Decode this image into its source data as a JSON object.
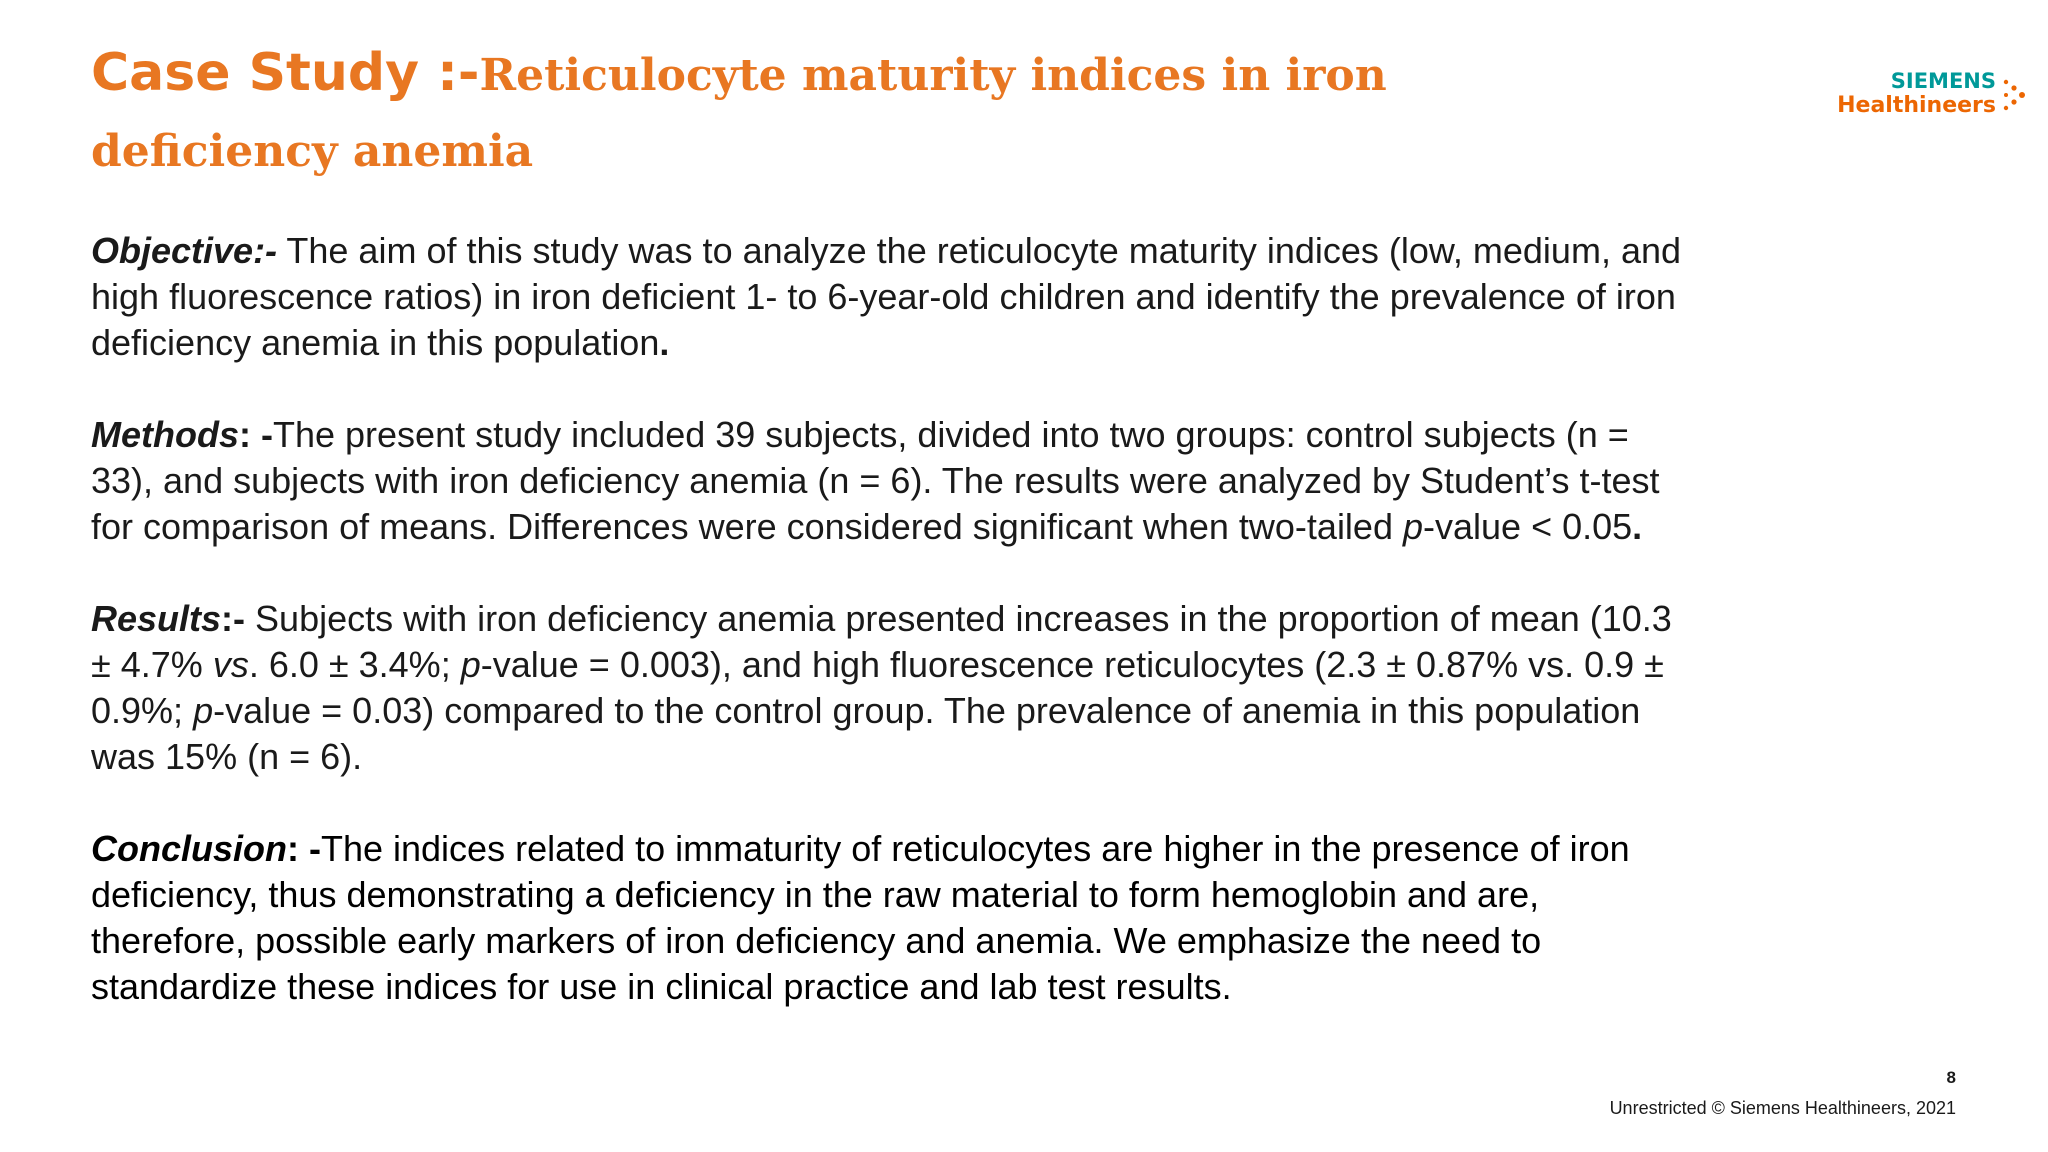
{
  "header": {
    "title_prefix": "Case Study :-",
    "title": "Reticulocyte maturity indices in iron deficiency anemia"
  },
  "logo": {
    "line1": "SIEMENS",
    "line2": "Healthineers"
  },
  "sections": [
    {
      "label": "Objective:-",
      "parts": [
        " The aim of this study was to analyze the reticulocyte maturity indices (low, medium, and high fluorescence ratios) in iron deficient 1- to 6-year-old children and identify the prevalence of iron deficiency anemia in this population",
        "."
      ]
    },
    {
      "label": "Methods",
      "sep": ": -",
      "parts": [
        "The present study included 39 subjects, divided into two groups: control subjects (n = 33), and subjects with iron deficiency anemia (n = 6). The results were analyzed by Student’s t-test for comparison of means. Differences were considered significant when two-tailed ",
        "p",
        "-value < 0.05",
        "."
      ]
    },
    {
      "label": "Results",
      "sep": ":-",
      "parts": [
        " Subjects with iron deficiency anemia presented increases in the proportion of mean (10.3 ± 4.7% ",
        "vs",
        ". 6.0 ± 3.4%; ",
        "p",
        "-value = 0.003), and high fluorescence reticulocytes (2.3 ± 0.87% vs. 0.9 ± 0.9%; ",
        "p",
        "-value = 0.03) compared to the control group. The prevalence of anemia in this population was 15% (n = 6)."
      ]
    },
    {
      "label": "Conclusion",
      "sep": ": -",
      "parts": [
        "The indices related to immaturity of reticulocytes are higher in the presence of iron deficiency, thus demonstrating a deficiency in the raw material to form hemoglobin and are, therefore, possible early markers of iron deficiency and anemia. We emphasize the need to standardize these indices for use in clinical practice and lab test results."
      ]
    }
  ],
  "footer": {
    "page": "8",
    "copyright": "Unrestricted © Siemens Healthineers, 2021"
  }
}
